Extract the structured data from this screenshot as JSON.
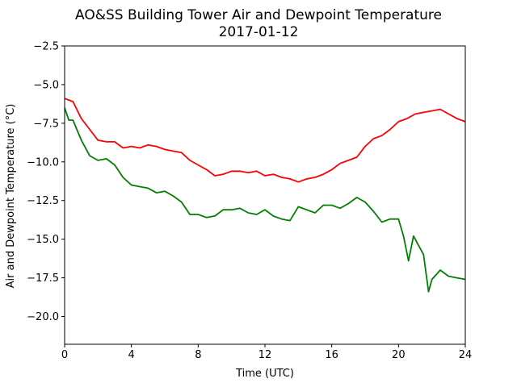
{
  "chart_data": {
    "type": "line",
    "title": "AO&SS Building Tower Air and Dewpoint Temperature",
    "subtitle": "2017-01-12",
    "xlabel": "Time (UTC)",
    "ylabel": "Air and Dewpoint Temperature (°C)",
    "xlim": [
      0,
      24
    ],
    "ylim": [
      -21.8,
      -2.5
    ],
    "xticks": [
      0,
      4,
      8,
      12,
      16,
      20,
      24
    ],
    "xtick_labels": [
      "0",
      "4",
      "8",
      "12",
      "16",
      "20",
      "24"
    ],
    "yticks": [
      -2.5,
      -5.0,
      -7.5,
      -10.0,
      -12.5,
      -15.0,
      -17.5,
      -20.0
    ],
    "ytick_labels": [
      "−2.5",
      "−5.0",
      "−7.5",
      "−10.0",
      "−12.5",
      "−15.0",
      "−17.5",
      "−20.0"
    ],
    "grid": false,
    "legend": "none",
    "series": [
      {
        "color": "#ff0000",
        "x": [
          0,
          0.5,
          1,
          1.5,
          2,
          2.5,
          3,
          3.5,
          4,
          4.5,
          5,
          5.5,
          6,
          6.5,
          7,
          7.5,
          8,
          8.5,
          9,
          9.5,
          10,
          10.5,
          11,
          11.5,
          12,
          12.5,
          13,
          13.5,
          14,
          14.5,
          15,
          15.5,
          16,
          16.5,
          17,
          17.5,
          18,
          18.5,
          19,
          19.5,
          20,
          20.5,
          21,
          21.5,
          22,
          22.5,
          23,
          23.5,
          24
        ],
        "y": [
          -5.9,
          -6.1,
          -7.2,
          -7.9,
          -8.6,
          -8.7,
          -8.7,
          -9.1,
          -9.0,
          -9.1,
          -8.9,
          -9.0,
          -9.2,
          -9.3,
          -9.4,
          -9.9,
          -10.2,
          -10.5,
          -10.9,
          -10.8,
          -10.6,
          -10.6,
          -10.7,
          -10.6,
          -10.9,
          -10.8,
          -11.0,
          -11.1,
          -11.3,
          -11.1,
          -11.0,
          -10.8,
          -10.5,
          -10.1,
          -9.9,
          -9.7,
          -9.0,
          -8.5,
          -8.3,
          -7.9,
          -7.4,
          -7.2,
          -6.9,
          -6.8,
          -6.7,
          -6.6,
          -6.9,
          -7.2,
          -7.4
        ]
      },
      {
        "color": "#008000",
        "x": [
          0,
          0.25,
          0.5,
          1,
          1.5,
          2,
          2.5,
          3,
          3.5,
          4,
          4.5,
          5,
          5.5,
          6,
          6.5,
          7,
          7.5,
          8,
          8.5,
          9,
          9.5,
          10,
          10.5,
          11,
          11.5,
          12,
          12.5,
          13,
          13.5,
          14,
          14.5,
          15,
          15.5,
          16,
          16.5,
          17,
          17.5,
          18,
          18.5,
          19,
          19.5,
          20,
          20.3,
          20.6,
          20.9,
          21.2,
          21.5,
          21.8,
          22,
          22.5,
          23,
          23.5,
          24
        ],
        "y": [
          -6.5,
          -7.3,
          -7.3,
          -8.6,
          -9.6,
          -9.9,
          -9.8,
          -10.2,
          -11.0,
          -11.5,
          -11.6,
          -11.7,
          -12.0,
          -11.9,
          -12.2,
          -12.6,
          -13.4,
          -13.4,
          -13.6,
          -13.5,
          -13.1,
          -13.1,
          -13.0,
          -13.3,
          -13.4,
          -13.1,
          -13.5,
          -13.7,
          -13.8,
          -12.9,
          -13.1,
          -13.3,
          -12.8,
          -12.8,
          -13.0,
          -12.7,
          -12.3,
          -12.6,
          -13.2,
          -13.9,
          -13.7,
          -13.7,
          -14.8,
          -16.4,
          -14.8,
          -15.4,
          -16.0,
          -18.4,
          -17.6,
          -17.0,
          -17.4,
          -17.5,
          -17.6
        ]
      }
    ]
  }
}
